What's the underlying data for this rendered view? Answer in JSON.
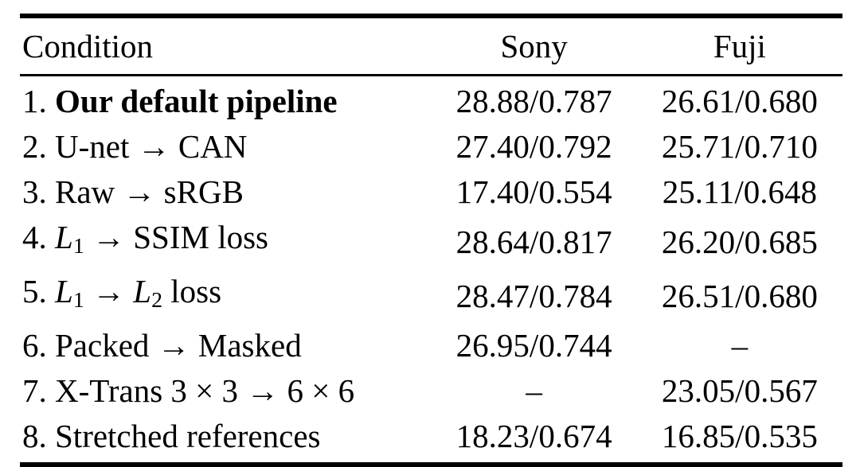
{
  "table": {
    "columns": [
      "Condition",
      "Sony",
      "Fuji"
    ],
    "missing_value_glyph": "–",
    "text_color": "#000000",
    "background_color": "#ffffff",
    "rows": [
      {
        "condition": [
          {
            "t": "1. "
          },
          {
            "t": "Our default pipeline",
            "b": true
          }
        ],
        "sony": "28.88/0.787",
        "fuji": "26.61/0.680"
      },
      {
        "condition": [
          {
            "t": "2. U-net → CAN"
          }
        ],
        "sony": "27.40/0.792",
        "fuji": "25.71/0.710"
      },
      {
        "condition": [
          {
            "t": "3. Raw → sRGB"
          }
        ],
        "sony": "17.40/0.554",
        "fuji": "25.11/0.648"
      },
      {
        "condition": [
          {
            "t": "4. "
          },
          {
            "t": "L",
            "i": true
          },
          {
            "t": "1",
            "sub": true
          },
          {
            "t": " → SSIM loss"
          }
        ],
        "sony": "28.64/0.817",
        "fuji": "26.20/0.685"
      },
      {
        "condition": [
          {
            "t": "5. "
          },
          {
            "t": "L",
            "i": true
          },
          {
            "t": "1",
            "sub": true
          },
          {
            "t": " → "
          },
          {
            "t": "L",
            "i": true
          },
          {
            "t": "2",
            "sub": true
          },
          {
            "t": " loss"
          }
        ],
        "sony": "28.47/0.784",
        "fuji": "26.51/0.680"
      },
      {
        "condition": [
          {
            "t": "6. Packed → Masked"
          }
        ],
        "sony": "26.95/0.744",
        "fuji": "–"
      },
      {
        "condition": [
          {
            "t": "7. X-Trans 3 × 3 → 6 × 6"
          }
        ],
        "sony": "–",
        "fuji": "23.05/0.567"
      },
      {
        "condition": [
          {
            "t": "8. Stretched references"
          }
        ],
        "sony": "18.23/0.674",
        "fuji": "16.85/0.535"
      }
    ]
  }
}
